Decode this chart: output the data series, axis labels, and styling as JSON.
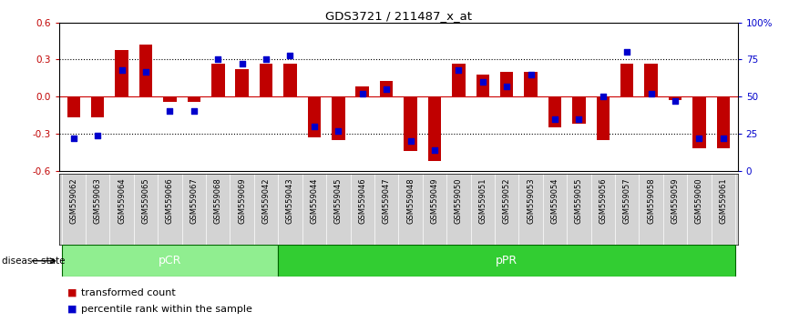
{
  "title": "GDS3721 / 211487_x_at",
  "samples": [
    "GSM559062",
    "GSM559063",
    "GSM559064",
    "GSM559065",
    "GSM559066",
    "GSM559067",
    "GSM559068",
    "GSM559069",
    "GSM559042",
    "GSM559043",
    "GSM559044",
    "GSM559045",
    "GSM559046",
    "GSM559047",
    "GSM559048",
    "GSM559049",
    "GSM559050",
    "GSM559051",
    "GSM559052",
    "GSM559053",
    "GSM559054",
    "GSM559055",
    "GSM559056",
    "GSM559057",
    "GSM559058",
    "GSM559059",
    "GSM559060",
    "GSM559061"
  ],
  "transformed_count": [
    -0.17,
    -0.17,
    0.38,
    0.42,
    -0.04,
    -0.04,
    0.27,
    0.22,
    0.27,
    0.27,
    -0.33,
    -0.35,
    0.08,
    0.13,
    -0.44,
    -0.52,
    0.27,
    0.18,
    0.2,
    0.2,
    -0.25,
    -0.22,
    -0.35,
    0.27,
    0.27,
    -0.03,
    -0.42,
    -0.42
  ],
  "percentile_rank": [
    22,
    24,
    68,
    67,
    40,
    40,
    75,
    72,
    75,
    78,
    30,
    27,
    52,
    55,
    20,
    14,
    68,
    60,
    57,
    65,
    35,
    35,
    50,
    80,
    52,
    47,
    22,
    22
  ],
  "groups": {
    "pCR": [
      0,
      9
    ],
    "pPR": [
      9,
      28
    ]
  },
  "bar_color": "#c00000",
  "dot_color": "#0000cc",
  "ylim": [
    -0.6,
    0.6
  ],
  "yticks_left": [
    -0.6,
    -0.3,
    0.0,
    0.3,
    0.6
  ],
  "yticks_right": [
    0,
    25,
    50,
    75,
    100
  ],
  "dotted_lines": [
    -0.3,
    0.3
  ],
  "zero_line_color": "#cc0000",
  "group_colors": {
    "pCR": "#90ee90",
    "pPR": "#32cd32"
  },
  "pcr_label_color": "white",
  "ppr_label_color": "white",
  "tick_label_bg": "#d3d3d3",
  "legend": [
    {
      "label": "transformed count",
      "color": "#c00000"
    },
    {
      "label": "percentile rank within the sample",
      "color": "#0000cc"
    }
  ]
}
